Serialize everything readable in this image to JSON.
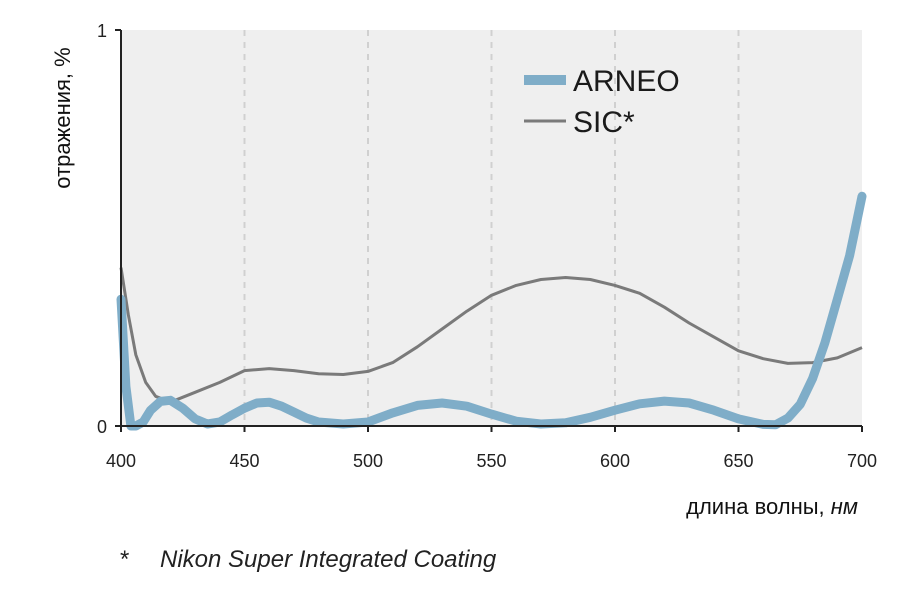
{
  "chart_data": {
    "type": "line",
    "ylabel": "отражения, %",
    "xlabel_main": "длина волны, ",
    "xlabel_unit": "нм",
    "xlim": [
      400,
      700
    ],
    "ylim": [
      0,
      1
    ],
    "x_ticks": [
      400,
      450,
      500,
      550,
      600,
      650,
      700
    ],
    "y_ticks": [
      0,
      1
    ],
    "grid": "vertical dashed",
    "legend_position": "top-right",
    "series": [
      {
        "name": "ARNEO",
        "color": "#7fadc8",
        "points": [
          [
            400,
            0.32
          ],
          [
            402,
            0.1
          ],
          [
            404,
            0.0
          ],
          [
            406,
            0.0
          ],
          [
            409,
            0.01
          ],
          [
            412,
            0.04
          ],
          [
            416,
            0.062
          ],
          [
            420,
            0.065
          ],
          [
            425,
            0.045
          ],
          [
            430,
            0.018
          ],
          [
            435,
            0.005
          ],
          [
            440,
            0.01
          ],
          [
            445,
            0.028
          ],
          [
            450,
            0.045
          ],
          [
            455,
            0.058
          ],
          [
            460,
            0.06
          ],
          [
            465,
            0.05
          ],
          [
            470,
            0.035
          ],
          [
            475,
            0.02
          ],
          [
            480,
            0.01
          ],
          [
            490,
            0.005
          ],
          [
            500,
            0.01
          ],
          [
            510,
            0.033
          ],
          [
            520,
            0.052
          ],
          [
            530,
            0.058
          ],
          [
            540,
            0.05
          ],
          [
            550,
            0.03
          ],
          [
            560,
            0.012
          ],
          [
            570,
            0.005
          ],
          [
            580,
            0.008
          ],
          [
            590,
            0.022
          ],
          [
            600,
            0.04
          ],
          [
            610,
            0.056
          ],
          [
            620,
            0.063
          ],
          [
            630,
            0.058
          ],
          [
            640,
            0.04
          ],
          [
            650,
            0.018
          ],
          [
            660,
            0.004
          ],
          [
            665,
            0.003
          ],
          [
            670,
            0.02
          ],
          [
            675,
            0.055
          ],
          [
            680,
            0.12
          ],
          [
            685,
            0.21
          ],
          [
            690,
            0.32
          ],
          [
            695,
            0.43
          ],
          [
            700,
            0.58
          ]
        ]
      },
      {
        "name": "SIC*",
        "color": "#7a7a7a",
        "points": [
          [
            400,
            0.4
          ],
          [
            403,
            0.28
          ],
          [
            406,
            0.18
          ],
          [
            410,
            0.11
          ],
          [
            414,
            0.075
          ],
          [
            420,
            0.06
          ],
          [
            430,
            0.085
          ],
          [
            440,
            0.11
          ],
          [
            450,
            0.14
          ],
          [
            460,
            0.145
          ],
          [
            470,
            0.14
          ],
          [
            480,
            0.132
          ],
          [
            490,
            0.13
          ],
          [
            500,
            0.138
          ],
          [
            510,
            0.16
          ],
          [
            520,
            0.2
          ],
          [
            530,
            0.245
          ],
          [
            540,
            0.29
          ],
          [
            550,
            0.33
          ],
          [
            560,
            0.355
          ],
          [
            570,
            0.37
          ],
          [
            580,
            0.375
          ],
          [
            590,
            0.37
          ],
          [
            600,
            0.355
          ],
          [
            610,
            0.335
          ],
          [
            620,
            0.3
          ],
          [
            630,
            0.26
          ],
          [
            640,
            0.225
          ],
          [
            650,
            0.19
          ],
          [
            660,
            0.17
          ],
          [
            670,
            0.158
          ],
          [
            680,
            0.16
          ],
          [
            690,
            0.172
          ],
          [
            700,
            0.198
          ]
        ]
      }
    ],
    "footnote_mark": "*",
    "footnote_text": "Nikon Super Integrated Coating"
  }
}
